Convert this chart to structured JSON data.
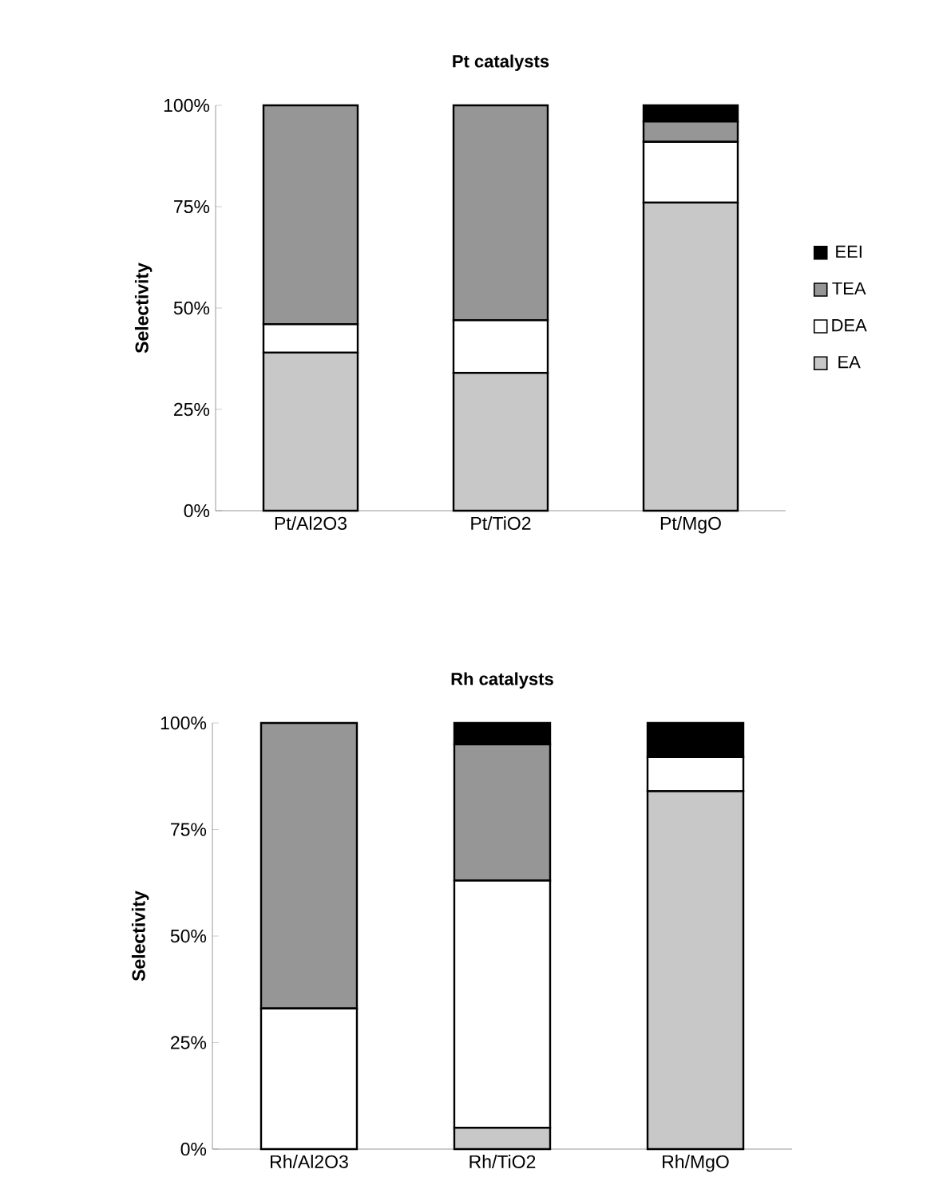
{
  "chart_data": [
    {
      "type": "bar",
      "title": "Pt catalysts",
      "ylabel": "Selectivity",
      "stacked": true,
      "categories": [
        "Pt/Al2O3",
        "Pt/TiO2",
        "Pt/MgO"
      ],
      "series": [
        {
          "name": "EA",
          "color": "#c8c8c8",
          "values": [
            39,
            34,
            76
          ]
        },
        {
          "name": "DEA",
          "color": "#ffffff",
          "values": [
            7,
            13,
            15
          ]
        },
        {
          "name": "TEA",
          "color": "#969696",
          "values": [
            54,
            53,
            5
          ]
        },
        {
          "name": "EEI",
          "color": "#000000",
          "values": [
            0,
            0,
            4
          ]
        }
      ],
      "ylim": [
        0,
        100
      ],
      "yticks": [
        {
          "value": 0,
          "label": "0%"
        },
        {
          "value": 25,
          "label": "25%"
        },
        {
          "value": 50,
          "label": "50%"
        },
        {
          "value": 75,
          "label": "75%"
        },
        {
          "value": 100,
          "label": "100%"
        }
      ],
      "legend": "right",
      "grid": false
    },
    {
      "type": "bar",
      "title": "Rh catalysts",
      "ylabel": "Selectivity",
      "stacked": true,
      "categories": [
        "Rh/Al2O3",
        "Rh/TiO2",
        "Rh/MgO"
      ],
      "series": [
        {
          "color": "#c8c8c8",
          "values": [
            0,
            5,
            84
          ]
        },
        {
          "color": "#ffffff",
          "values": [
            33,
            58,
            8
          ]
        },
        {
          "color": "#969696",
          "values": [
            67,
            32,
            0
          ]
        },
        {
          "color": "#000000",
          "values": [
            0,
            5,
            8
          ]
        }
      ],
      "ylim": [
        0,
        100
      ],
      "yticks": [
        {
          "value": 0,
          "label": "0%"
        },
        {
          "value": 25,
          "label": "25%"
        },
        {
          "value": 50,
          "label": "50%"
        },
        {
          "value": 75,
          "label": "75%"
        },
        {
          "value": 100,
          "label": "100%"
        }
      ],
      "legend": false,
      "grid": false
    }
  ]
}
